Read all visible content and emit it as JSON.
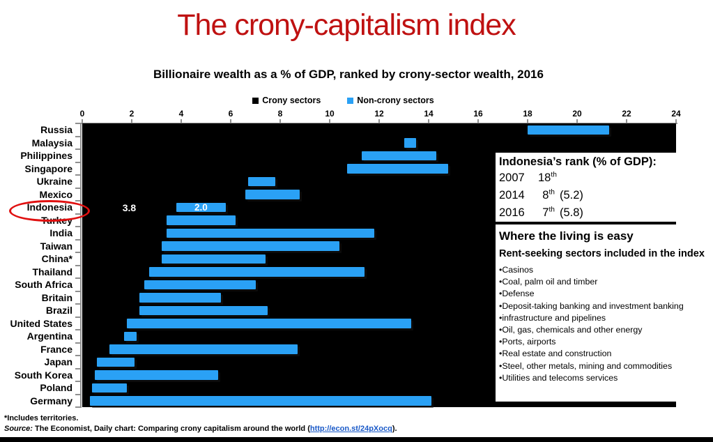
{
  "header": {
    "title": "The crony-capitalism index",
    "subtitle": "Billionaire wealth as a % of GDP, ranked by crony-sector wealth, 2016"
  },
  "legend": {
    "crony_label": "Crony sectors",
    "noncrony_label": "Non-crony sectors"
  },
  "colors": {
    "title_red": "#bf1111",
    "ellipse_red": "#e01010",
    "bar_blue": "#2aa1f5",
    "crony_black": "#000000",
    "axis_gray": "#8f8f8f",
    "link_blue": "#1959c8"
  },
  "chart_data": {
    "type": "bar",
    "orientation": "horizontal-stacked",
    "title": "Billionaire wealth as a % of GDP, ranked by crony-sector wealth, 2016",
    "xlabel": "",
    "ylabel": "",
    "xlim": [
      0,
      24
    ],
    "x_ticks": [
      0,
      2,
      4,
      6,
      8,
      10,
      12,
      14,
      16,
      18,
      20,
      22,
      24
    ],
    "grid": false,
    "legend_position": "top",
    "series_names": [
      "Crony sectors",
      "Non-crony sectors"
    ],
    "highlighted_country": "Indonesia",
    "countries": [
      {
        "name": "Russia",
        "crony": 18.0,
        "noncrony": 3.3
      },
      {
        "name": "Malaysia",
        "crony": 13.0,
        "noncrony": 0.5
      },
      {
        "name": "Philippines",
        "crony": 11.3,
        "noncrony": 3.0
      },
      {
        "name": "Singapore",
        "crony": 10.7,
        "noncrony": 4.1
      },
      {
        "name": "Ukraine",
        "crony": 6.7,
        "noncrony": 1.1
      },
      {
        "name": "Mexico",
        "crony": 6.6,
        "noncrony": 2.2
      },
      {
        "name": "Indonesia",
        "crony": 3.8,
        "noncrony": 2.0,
        "crony_label": "3.8",
        "noncrony_label": "2.0"
      },
      {
        "name": "Turkey",
        "crony": 3.4,
        "noncrony": 2.8
      },
      {
        "name": "India",
        "crony": 3.4,
        "noncrony": 8.4
      },
      {
        "name": "Taiwan",
        "crony": 3.2,
        "noncrony": 7.2
      },
      {
        "name": "China*",
        "crony": 3.2,
        "noncrony": 4.2
      },
      {
        "name": "Thailand",
        "crony": 2.7,
        "noncrony": 8.7
      },
      {
        "name": "South Africa",
        "crony": 2.5,
        "noncrony": 4.5
      },
      {
        "name": "Britain",
        "crony": 2.3,
        "noncrony": 3.3
      },
      {
        "name": "Brazil",
        "crony": 2.3,
        "noncrony": 5.2
      },
      {
        "name": "United States",
        "crony": 1.8,
        "noncrony": 11.5
      },
      {
        "name": "Argentina",
        "crony": 1.7,
        "noncrony": 0.5
      },
      {
        "name": "France",
        "crony": 1.1,
        "noncrony": 7.6
      },
      {
        "name": "Japan",
        "crony": 0.6,
        "noncrony": 1.5
      },
      {
        "name": "South Korea",
        "crony": 0.5,
        "noncrony": 5.0
      },
      {
        "name": "Poland",
        "crony": 0.4,
        "noncrony": 1.4
      },
      {
        "name": "Germany",
        "crony": 0.3,
        "noncrony": 13.8
      }
    ]
  },
  "rank_box": {
    "title": "Indonesia’s rank (% of GDP):",
    "rows": [
      {
        "year": "2007",
        "rank": "18",
        "suffix": "th",
        "value": ""
      },
      {
        "year": "2014",
        "rank": "8",
        "suffix": "th",
        "value": "(5.2)"
      },
      {
        "year": "2016",
        "rank": "7",
        "suffix": "th",
        "value": "(5.8)"
      }
    ]
  },
  "info_box": {
    "heading": "Where the living is easy",
    "subheading": "Rent-seeking sectors included in the index",
    "bullet": "•",
    "items": [
      "Casinos",
      "Coal, palm oil and timber",
      "Defense",
      "Deposit-taking banking and investment banking",
      "infrastructure and pipelines",
      "Oil, gas, chemicals and other energy",
      "Ports, airports",
      "Real estate and construction",
      "Steel, other metals, mining and commodities",
      "Utilities and telecoms services"
    ]
  },
  "footer": {
    "note": "*Includes territories.",
    "source_prefix": "Source:",
    "source_text": " The Economist, Daily chart: Comparing crony capitalism around the world (",
    "link_text": "http://econ.st/24pXocq",
    "source_suffix": ")."
  }
}
